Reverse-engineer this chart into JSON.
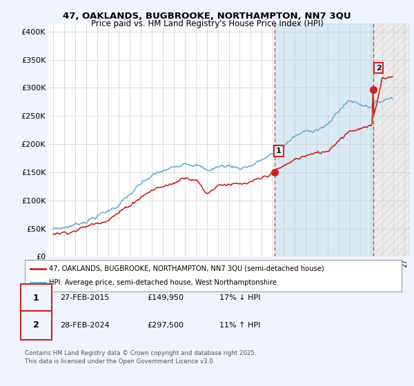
{
  "title_line1": "47, OAKLANDS, BUGBROOKE, NORTHAMPTON, NN7 3QU",
  "title_line2": "Price paid vs. HM Land Registry's House Price Index (HPI)",
  "y_ticks": [
    0,
    50000,
    100000,
    150000,
    200000,
    250000,
    300000,
    350000,
    400000
  ],
  "y_tick_labels": [
    "£0",
    "£50K",
    "£100K",
    "£150K",
    "£200K",
    "£250K",
    "£300K",
    "£350K",
    "£400K"
  ],
  "ylim": [
    0,
    415000
  ],
  "xlim_start": 1994.5,
  "xlim_end": 2027.5,
  "hpi_color": "#6baed6",
  "price_color": "#cc2222",
  "transaction1_date": 2015.15,
  "transaction1_value": 149950,
  "transaction2_date": 2024.15,
  "transaction2_value": 297500,
  "legend_line1": "47, OAKLANDS, BUGBROOKE, NORTHAMPTON, NN7 3QU (semi-detached house)",
  "legend_line2": "HPI: Average price, semi-detached house, West Northamptonshire",
  "annotation1_date": "27-FEB-2015",
  "annotation1_price": "£149,950",
  "annotation1_hpi": "17% ↓ HPI",
  "annotation2_date": "28-FEB-2024",
  "annotation2_price": "£297,500",
  "annotation2_hpi": "11% ↑ HPI",
  "footnote": "Contains HM Land Registry data © Crown copyright and database right 2025.\nThis data is licensed under the Open Government Licence v3.0.",
  "background_color": "#f0f4ff",
  "plot_bg_color": "#dce8f5",
  "shaded_region_color": "#dce8f5",
  "hpi_linewidth": 1.2,
  "price_linewidth": 1.2
}
